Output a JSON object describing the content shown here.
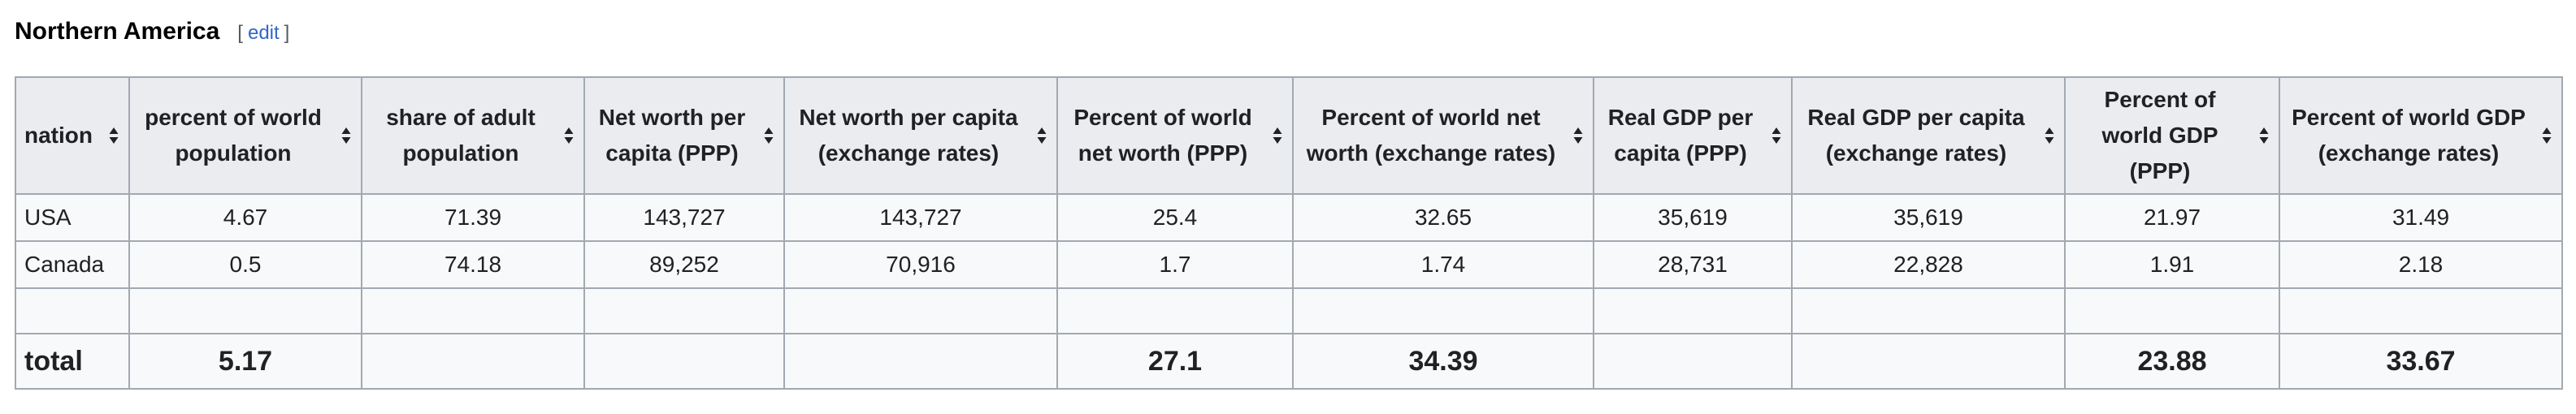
{
  "section": {
    "title": "Northern America",
    "edit_open": "[",
    "edit_label": "edit",
    "edit_close": "]"
  },
  "table": {
    "columns": [
      "nation",
      "percent of world population",
      "share of adult population",
      "Net worth per capita (PPP)",
      "Net worth per capita (exchange rates)",
      "Percent of world net worth (PPP)",
      "Percent of world net worth (exchange rates)",
      "Real GDP per capita (PPP)",
      "Real GDP per capita (exchange rates)",
      "Percent of world GDP (PPP)",
      "Percent of world GDP (exchange rates)"
    ],
    "rows": [
      [
        "USA",
        "4.67",
        "71.39",
        "143,727",
        "143,727",
        "25.4",
        "32.65",
        "35,619",
        "35,619",
        "21.97",
        "31.49"
      ],
      [
        "Canada",
        "0.5",
        "74.18",
        "89,252",
        "70,916",
        "1.7",
        "1.74",
        "28,731",
        "22,828",
        "1.91",
        "2.18"
      ],
      [
        "",
        "",
        "",
        "",
        "",
        "",
        "",
        "",
        "",
        "",
        ""
      ]
    ],
    "total": [
      "total",
      "5.17",
      "",
      "",
      "",
      "27.1",
      "34.39",
      "",
      "",
      "23.88",
      "33.67"
    ]
  }
}
